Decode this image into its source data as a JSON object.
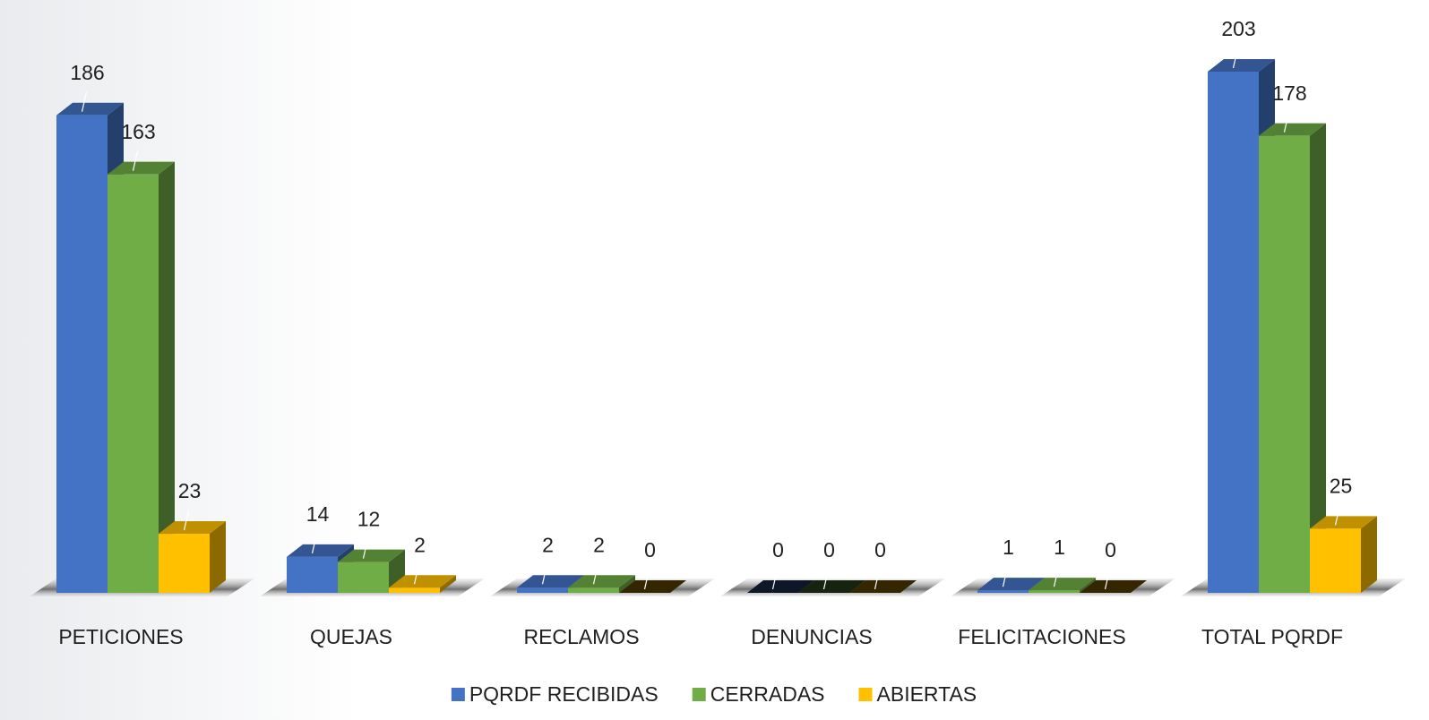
{
  "chart_data": {
    "type": "bar3d",
    "categories": [
      "PETICIONES",
      "QUEJAS",
      "RECLAMOS",
      "DENUNCIAS",
      "FELICITACIONES",
      "TOTAL PQRDF"
    ],
    "series": [
      {
        "name": "PQRDF RECIBIDAS",
        "color": "#4472c4",
        "values": [
          186,
          14,
          2,
          0,
          1,
          203
        ]
      },
      {
        "name": "CERRADAS",
        "color": "#70ad47",
        "values": [
          163,
          12,
          2,
          0,
          1,
          178
        ]
      },
      {
        "name": "ABIERTAS",
        "color": "#ffc000",
        "values": [
          23,
          2,
          0,
          0,
          0,
          25
        ]
      }
    ],
    "legend": "bottom"
  }
}
